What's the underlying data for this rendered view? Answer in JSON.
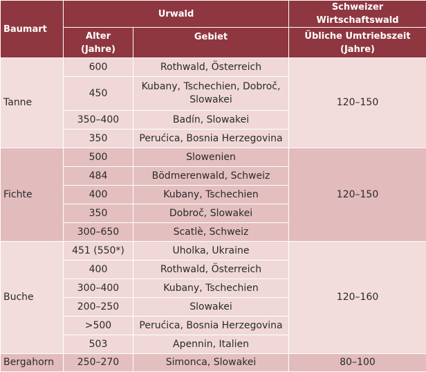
{
  "header": {
    "baumart": "Baumart",
    "urwald": "Urwald",
    "wirtschaftswald": "Schweizer Wirtschaftswald",
    "alter_line1": "Alter",
    "alter_line2": "(Jahre)",
    "gebiet": "Gebiet",
    "umtrieb_line1": "Übliche Umtriebszeit",
    "umtrieb_line2": "(Jahre)"
  },
  "groups": [
    {
      "species": "Tanne",
      "cycle": "120–150",
      "rows": [
        {
          "age": "600",
          "area": "Rothwald, Österreich"
        },
        {
          "age": "450",
          "area_line1": "Kubany, Tschechien, Dobroč,",
          "area_line2": "Slowakei"
        },
        {
          "age": "350–400",
          "area": "Badín, Slowakei"
        },
        {
          "age": "350",
          "area": "Perućica, Bosnia Herzegovina"
        }
      ]
    },
    {
      "species": "Fichte",
      "cycle": "120–150",
      "rows": [
        {
          "age": "500",
          "area": "Slowenien"
        },
        {
          "age": "484",
          "area": "Bödmerenwald, Schweiz"
        },
        {
          "age": "400",
          "area": "Kubany, Tschechien"
        },
        {
          "age": "350",
          "area": "Dobroč, Slowakei"
        },
        {
          "age": "300–650",
          "area": "Scatlè, Schweiz"
        }
      ]
    },
    {
      "species": "Buche",
      "cycle": "120–160",
      "rows": [
        {
          "age": "451 (550*)",
          "area": "Uholka, Ukraine"
        },
        {
          "age": "400",
          "area": "Rothwald, Österreich"
        },
        {
          "age": "300–400",
          "area": "Kubany, Tschechien"
        },
        {
          "age": "200–250",
          "area": "Slowakei"
        },
        {
          "age": ">500",
          "area": "Perućica, Bosnia Herzegovina"
        },
        {
          "age": "503",
          "area": "Apennin, Italien"
        }
      ]
    },
    {
      "species": "Bergahorn",
      "cycle": "80–100",
      "rows": [
        {
          "age": "250–270",
          "area": "Simonca, Slowakei"
        }
      ]
    }
  ]
}
